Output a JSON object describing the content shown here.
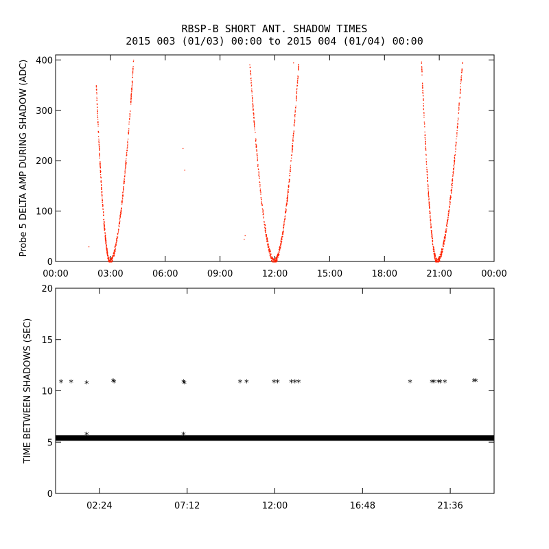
{
  "title_line1": "RBSP-B SHORT ANT. SHADOW TIMES",
  "title_line2": "2015 003 (01/03) 00:00 to 2015 004 (01/04) 00:00",
  "colors": {
    "top_points": "#ff2200",
    "bottom_points": "#000000",
    "axes": "#000000"
  },
  "chart_data": [
    {
      "type": "scatter",
      "ylabel": "Probe 5 DELTA AMP DURING SHADOW (ADC)",
      "xlim": [
        0,
        24
      ],
      "ylim": [
        0,
        410
      ],
      "x_ticks": [
        "00:00",
        "03:00",
        "06:00",
        "09:00",
        "12:00",
        "15:00",
        "18:00",
        "21:00",
        "00:00"
      ],
      "x_tick_values": [
        0,
        3,
        6,
        9,
        12,
        15,
        18,
        21,
        24
      ],
      "y_ticks": [
        "0",
        "100",
        "200",
        "300",
        "400"
      ],
      "y_tick_values": [
        0,
        100,
        200,
        300,
        400
      ],
      "series": [
        {
          "color": "#ff2200",
          "events": [
            {
              "min_x": 2.95,
              "left_start": 2.2,
              "right_end": 4.25,
              "left_peak": 355,
              "right_peak": 400
            },
            {
              "min_x": 11.95,
              "left_start": 10.6,
              "right_end": 13.3,
              "left_peak": 400,
              "right_peak": 400
            },
            {
              "min_x": 20.85,
              "left_start": 20.0,
              "right_end": 22.25,
              "left_peak": 400,
              "right_peak": 400
            }
          ],
          "outliers": [
            [
              6.95,
              225
            ],
            [
              7.05,
              182
            ],
            [
              1.8,
              30
            ],
            [
              10.3,
              45
            ],
            [
              10.35,
              52
            ],
            [
              13.0,
              395
            ]
          ]
        }
      ]
    },
    {
      "type": "scatter",
      "ylabel": "TIME BETWEEN SHADOWS (SEC)",
      "xlim": [
        0,
        24
      ],
      "ylim": [
        0,
        20
      ],
      "x_ticks": [
        "02:24",
        "07:12",
        "12:00",
        "16:48",
        "21:36"
      ],
      "x_tick_values": [
        2.4,
        7.2,
        12.0,
        16.8,
        21.6
      ],
      "y_ticks": [
        "0",
        "5",
        "10",
        "15",
        "20"
      ],
      "y_tick_values": [
        0,
        5,
        10,
        15,
        20
      ],
      "baseline_value": 5.4,
      "baseline_x_range": [
        0,
        24
      ],
      "series": [
        {
          "color": "#000000",
          "marker": "*",
          "points": [
            [
              0.3,
              10.8
            ],
            [
              0.85,
              10.8
            ],
            [
              1.7,
              10.7
            ],
            [
              3.15,
              10.9
            ],
            [
              3.2,
              10.8
            ],
            [
              7.0,
              10.8
            ],
            [
              7.05,
              10.7
            ],
            [
              10.1,
              10.8
            ],
            [
              10.45,
              10.8
            ],
            [
              11.95,
              10.8
            ],
            [
              12.15,
              10.8
            ],
            [
              12.9,
              10.8
            ],
            [
              13.1,
              10.8
            ],
            [
              13.3,
              10.8
            ],
            [
              19.4,
              10.8
            ],
            [
              20.6,
              10.8
            ],
            [
              20.7,
              10.8
            ],
            [
              20.95,
              10.8
            ],
            [
              21.05,
              10.8
            ],
            [
              21.3,
              10.8
            ],
            [
              22.9,
              10.9
            ],
            [
              23.0,
              10.9
            ],
            [
              1.7,
              5.7
            ],
            [
              7.0,
              5.7
            ]
          ]
        }
      ]
    }
  ]
}
